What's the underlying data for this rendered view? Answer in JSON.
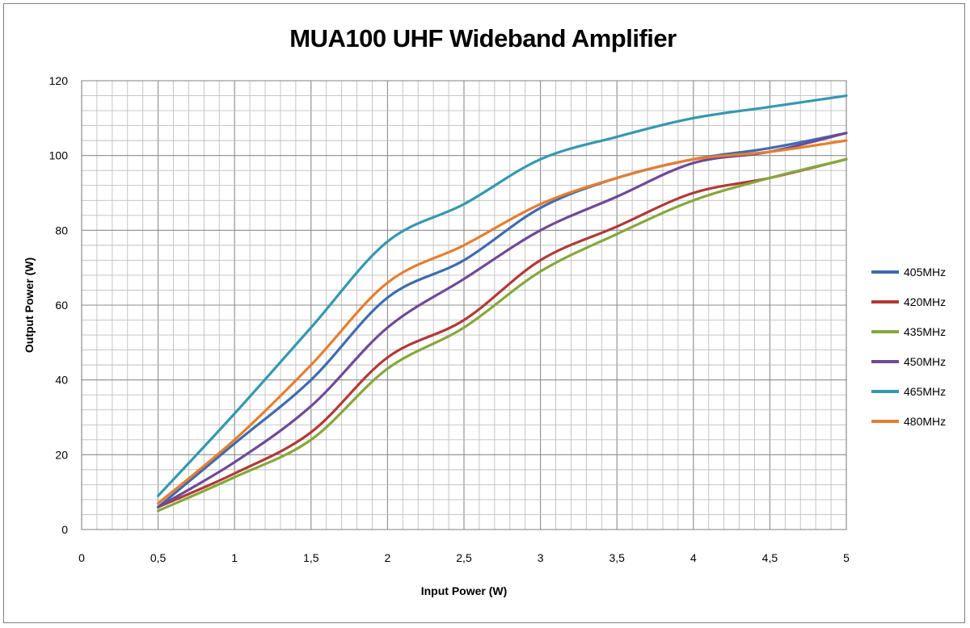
{
  "chart_data": {
    "type": "line",
    "title": "MUA100 UHF Wideband Amplifier",
    "xlabel": "Input Power (W)",
    "ylabel": "Output Power (W)",
    "xlim": [
      0,
      5
    ],
    "ylim": [
      0,
      120
    ],
    "x_ticks": [
      "0",
      "0,5",
      "1",
      "1,5",
      "2",
      "2,5",
      "3",
      "3,5",
      "4",
      "4,5",
      "5"
    ],
    "y_ticks": [
      "0",
      "20",
      "40",
      "60",
      "80",
      "100",
      "120"
    ],
    "grid": true,
    "legend_position": "right",
    "x": [
      0.5,
      1,
      1.5,
      2,
      2.5,
      3,
      3.5,
      4,
      4.5,
      5
    ],
    "series": [
      {
        "name": "405MHz",
        "color": "#3f6bb0",
        "values": [
          6,
          23,
          40,
          62,
          72,
          86,
          94,
          99,
          102,
          106
        ]
      },
      {
        "name": "420MHz",
        "color": "#b03a38",
        "values": [
          6,
          15,
          26,
          46,
          56,
          72,
          81,
          90,
          94,
          99
        ]
      },
      {
        "name": "435MHz",
        "color": "#86a83c",
        "values": [
          5,
          14,
          24,
          43,
          54,
          69,
          79,
          88,
          94,
          99
        ]
      },
      {
        "name": "450MHz",
        "color": "#6f4a97",
        "values": [
          6,
          18,
          33,
          54,
          67,
          80,
          89,
          98,
          101,
          106
        ]
      },
      {
        "name": "465MHz",
        "color": "#3499b0",
        "values": [
          9,
          31,
          54,
          77,
          87,
          99,
          105,
          110,
          113,
          116
        ]
      },
      {
        "name": "480MHz",
        "color": "#e57e2f",
        "values": [
          7,
          24,
          44,
          66,
          76,
          87,
          94,
          99,
          101,
          104
        ]
      }
    ]
  }
}
